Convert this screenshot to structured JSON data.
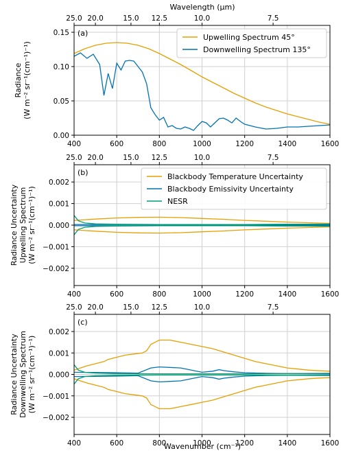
{
  "top_axis_title": "Wavelength (μm)",
  "bottom_axis_title": "Wavenumber (cm⁻¹)",
  "colors": {
    "orange": "#E69F00",
    "blue": "#0072B2",
    "green": "#009E73"
  },
  "chart_data": [
    {
      "type": "line",
      "panel_label": "(a)",
      "ylabel_lines": [
        "Radiance",
        "(W m⁻² sr⁻¹(cm⁻¹)⁻¹)"
      ],
      "xlim": [
        400,
        1600
      ],
      "ylim": [
        0,
        0.16
      ],
      "x_ticks": [
        "400",
        "600",
        "800",
        "1000",
        "1200",
        "1400",
        "1600"
      ],
      "y_ticks": [
        "0.00",
        "0.05",
        "0.10",
        "0.15"
      ],
      "top_ticks": [
        {
          "wavenumber": 400,
          "label": "25.0"
        },
        {
          "wavenumber": 500,
          "label": "20.0"
        },
        {
          "wavenumber": 666.7,
          "label": "15.0"
        },
        {
          "wavenumber": 800,
          "label": "12.5"
        },
        {
          "wavenumber": 1000,
          "label": "10.0"
        },
        {
          "wavenumber": 1333.3,
          "label": "7.5"
        }
      ],
      "grid": true,
      "legend_position": "top-right",
      "series": [
        {
          "name": "Upwelling Spectrum 45°",
          "color": "orange",
          "x": [
            400,
            450,
            500,
            550,
            600,
            650,
            700,
            750,
            800,
            850,
            900,
            950,
            1000,
            1050,
            1100,
            1150,
            1200,
            1250,
            1300,
            1350,
            1400,
            1450,
            1500,
            1550,
            1600
          ],
          "values": [
            0.119,
            0.126,
            0.131,
            0.134,
            0.135,
            0.134,
            0.131,
            0.126,
            0.119,
            0.111,
            0.103,
            0.094,
            0.085,
            0.077,
            0.069,
            0.061,
            0.054,
            0.047,
            0.041,
            0.036,
            0.031,
            0.027,
            0.023,
            0.019,
            0.016
          ]
        },
        {
          "name": "Downwelling Spectrum 135°",
          "color": "blue",
          "x": [
            400,
            430,
            460,
            490,
            520,
            540,
            560,
            580,
            600,
            620,
            640,
            660,
            680,
            700,
            720,
            740,
            760,
            780,
            800,
            820,
            840,
            860,
            880,
            900,
            920,
            940,
            960,
            980,
            1000,
            1020,
            1040,
            1060,
            1080,
            1100,
            1120,
            1140,
            1160,
            1180,
            1200,
            1250,
            1300,
            1350,
            1400,
            1450,
            1500,
            1550,
            1600
          ],
          "values": [
            0.115,
            0.12,
            0.112,
            0.118,
            0.103,
            0.058,
            0.09,
            0.068,
            0.105,
            0.095,
            0.108,
            0.109,
            0.108,
            0.1,
            0.092,
            0.075,
            0.04,
            0.03,
            0.022,
            0.026,
            0.012,
            0.014,
            0.01,
            0.009,
            0.012,
            0.01,
            0.007,
            0.014,
            0.02,
            0.018,
            0.012,
            0.018,
            0.024,
            0.025,
            0.022,
            0.018,
            0.025,
            0.02,
            0.016,
            0.012,
            0.009,
            0.01,
            0.012,
            0.012,
            0.013,
            0.014,
            0.015
          ]
        }
      ]
    },
    {
      "type": "line",
      "panel_label": "(b)",
      "ylabel_lines": [
        "Radiance Uncertainty",
        "Upwelling Spectrum",
        "(W m⁻² sr⁻¹(cm⁻¹)⁻¹)"
      ],
      "xlim": [
        400,
        1600
      ],
      "ylim": [
        -0.0028,
        0.0028
      ],
      "x_ticks": [
        "400",
        "600",
        "800",
        "1000",
        "1200",
        "1400",
        "1600"
      ],
      "y_ticks": [
        "−0.002",
        "−0.001",
        "0.000",
        "0.001",
        "0.002"
      ],
      "y_tick_values": [
        -0.002,
        -0.001,
        0,
        0.001,
        0.002
      ],
      "top_ticks": [
        {
          "wavenumber": 400,
          "label": "25.0"
        },
        {
          "wavenumber": 500,
          "label": "20.0"
        },
        {
          "wavenumber": 666.7,
          "label": "15.0"
        },
        {
          "wavenumber": 800,
          "label": "12.5"
        },
        {
          "wavenumber": 1000,
          "label": "10.0"
        },
        {
          "wavenumber": 1333.3,
          "label": "7.5"
        }
      ],
      "grid": true,
      "legend_position": "top-right",
      "series": [
        {
          "name": "Blackbody Temperature Uncertainty",
          "color": "orange",
          "x": [
            400,
            500,
            600,
            700,
            800,
            900,
            1000,
            1100,
            1200,
            1300,
            1400,
            1500,
            1600
          ],
          "values": [
            0.00022,
            0.00028,
            0.00033,
            0.00036,
            0.00037,
            0.00035,
            0.00031,
            0.00027,
            0.00022,
            0.00018,
            0.00014,
            0.00011,
            8e-05
          ]
        },
        {
          "name": "Blackbody Emissivity Uncertainty",
          "color": "blue",
          "x": [
            400,
            600,
            800,
            1000,
            1200,
            1400,
            1600
          ],
          "values": [
            3e-05,
            3e-05,
            2e-05,
            2e-05,
            2e-05,
            1e-05,
            1e-05
          ]
        },
        {
          "name": "NESR",
          "color": "green",
          "x": [
            400,
            420,
            450,
            500,
            600,
            800,
            1000,
            1200,
            1400,
            1600
          ],
          "values": [
            0.00045,
            0.0002,
            0.0001,
            6e-05,
            4e-05,
            3e-05,
            3e-05,
            3e-05,
            4e-05,
            5e-05
          ]
        }
      ]
    },
    {
      "type": "line",
      "panel_label": "(c)",
      "ylabel_lines": [
        "Radiance Uncertainty",
        "Downwelling Spectrum",
        "(W m⁻² sr⁻¹(cm⁻¹)⁻¹)"
      ],
      "xlim": [
        400,
        1600
      ],
      "ylim": [
        -0.0028,
        0.0028
      ],
      "x_ticks": [
        "400",
        "600",
        "800",
        "1000",
        "1200",
        "1400",
        "1600"
      ],
      "y_ticks": [
        "−0.002",
        "−0.001",
        "0.000",
        "0.001",
        "0.002"
      ],
      "y_tick_values": [
        -0.002,
        -0.001,
        0,
        0.001,
        0.002
      ],
      "top_ticks": [
        {
          "wavenumber": 400,
          "label": "25.0"
        },
        {
          "wavenumber": 500,
          "label": "20.0"
        },
        {
          "wavenumber": 666.7,
          "label": "15.0"
        },
        {
          "wavenumber": 800,
          "label": "12.5"
        },
        {
          "wavenumber": 1000,
          "label": "10.0"
        },
        {
          "wavenumber": 1333.3,
          "label": "7.5"
        }
      ],
      "grid": true,
      "series": [
        {
          "name": "",
          "color": "orange",
          "x": [
            400,
            430,
            460,
            500,
            540,
            560,
            600,
            640,
            680,
            720,
            740,
            760,
            780,
            800,
            850,
            900,
            950,
            1000,
            1050,
            1100,
            1150,
            1200,
            1250,
            1300,
            1350,
            1400,
            1450,
            1500,
            1550,
            1600
          ],
          "values": [
            0.0002,
            0.0003,
            0.0004,
            0.0005,
            0.0006,
            0.0007,
            0.0008,
            0.0009,
            0.00095,
            0.001,
            0.0011,
            0.0014,
            0.0015,
            0.0016,
            0.0016,
            0.0015,
            0.0014,
            0.0013,
            0.0012,
            0.00105,
            0.0009,
            0.00075,
            0.0006,
            0.0005,
            0.0004,
            0.0003,
            0.00025,
            0.0002,
            0.00017,
            0.00015
          ]
        },
        {
          "name": "",
          "color": "blue",
          "x": [
            400,
            600,
            700,
            760,
            800,
            900,
            1000,
            1050,
            1080,
            1100,
            1150,
            1200,
            1300,
            1400,
            1600
          ],
          "values": [
            0.0001,
            8e-05,
            6e-05,
            0.0003,
            0.00035,
            0.0003,
            0.0001,
            0.00015,
            0.00022,
            0.00018,
            0.00012,
            8e-05,
            5e-05,
            4e-05,
            3e-05
          ]
        },
        {
          "name": "",
          "color": "green",
          "x": [
            400,
            420,
            450,
            500,
            600,
            800,
            1000,
            1200,
            1400,
            1600
          ],
          "values": [
            0.00045,
            0.0002,
            0.0001,
            6e-05,
            4e-05,
            3e-05,
            3e-05,
            3e-05,
            4e-05,
            5e-05
          ]
        }
      ]
    }
  ]
}
